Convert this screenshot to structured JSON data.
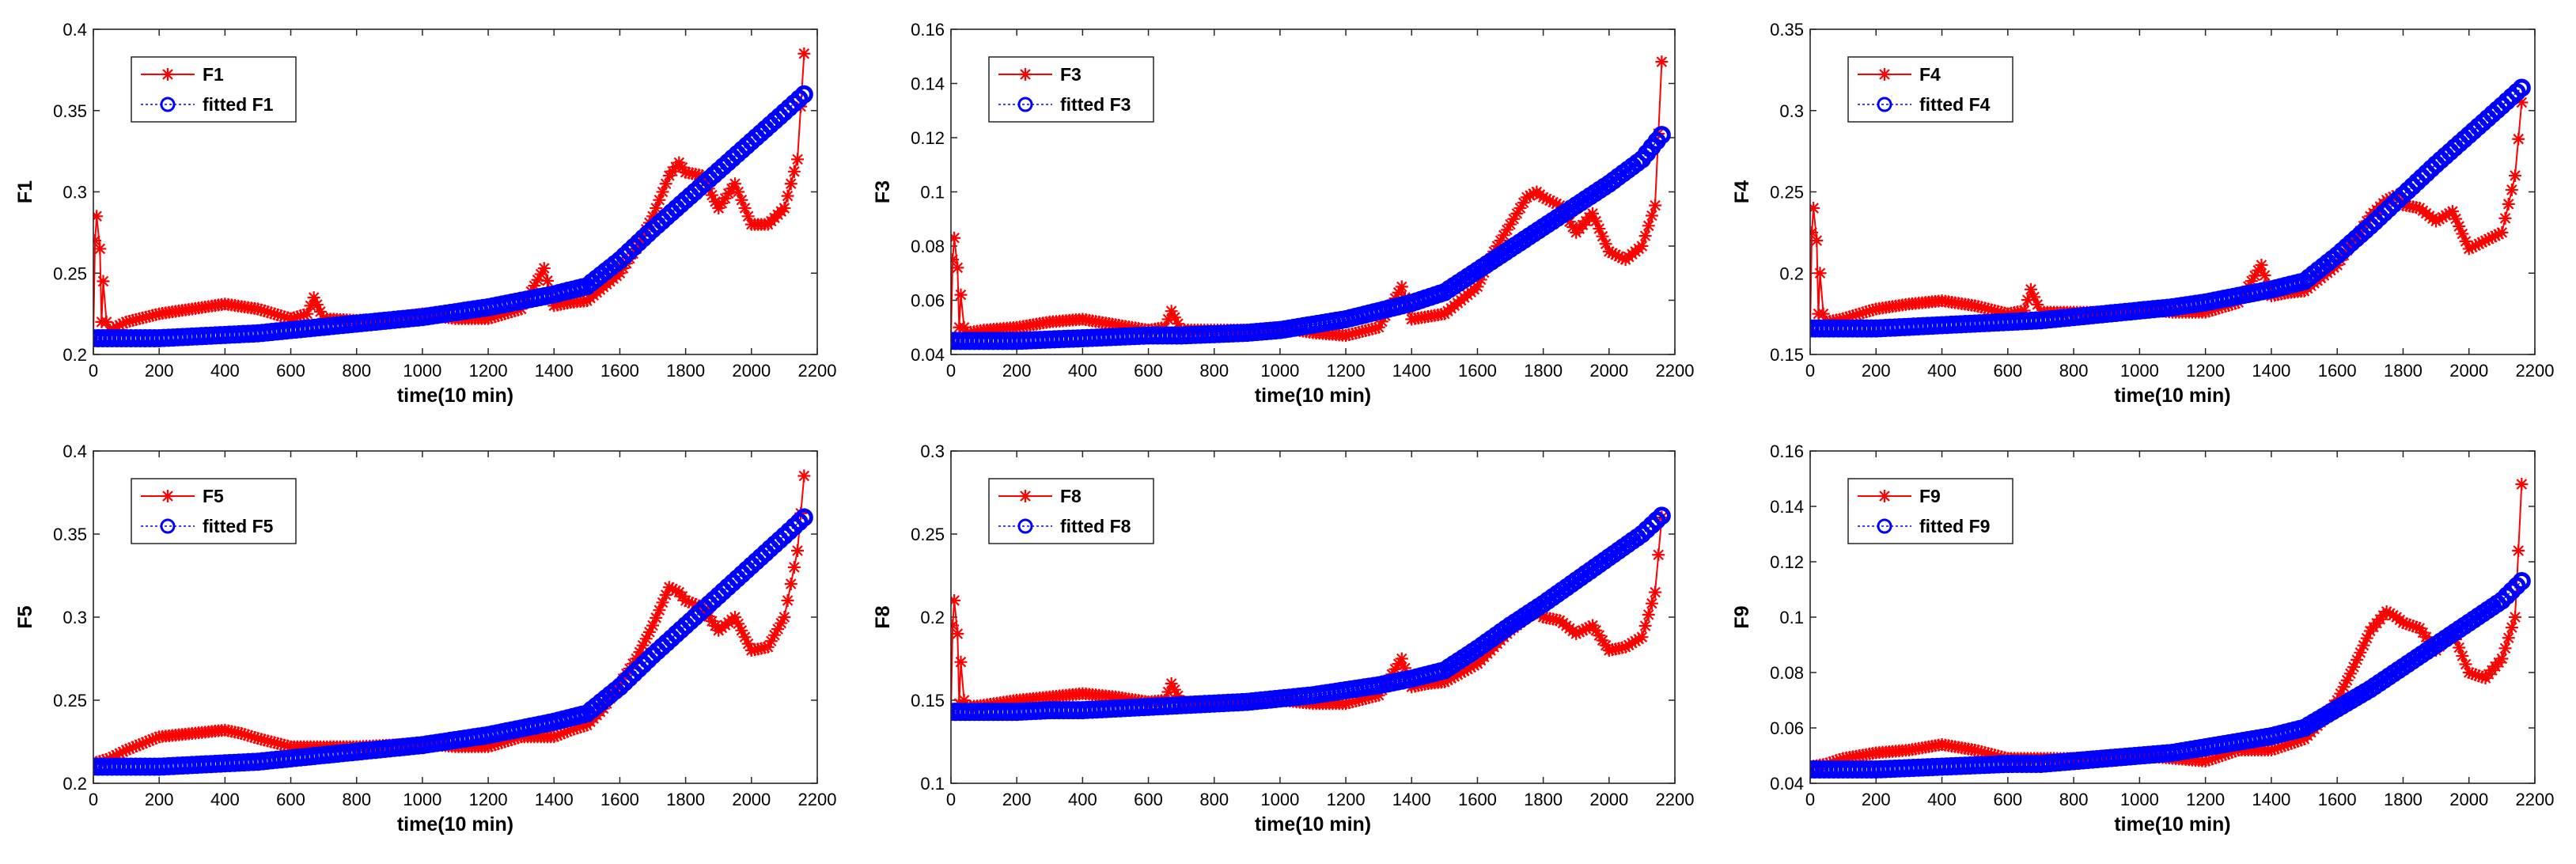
{
  "chart_data": [
    {
      "type": "line",
      "ylabel": "F1",
      "xlabel": "time(10 min)",
      "xlim": [
        0,
        2200
      ],
      "ylim": [
        0.2,
        0.4
      ],
      "xticks": [
        "0",
        "200",
        "400",
        "600",
        "800",
        "1000",
        "1200",
        "1400",
        "1600",
        "1800",
        "2000",
        "2200"
      ],
      "yticks": [
        "0.2",
        "0.25",
        "0.3",
        "0.35",
        "0.4"
      ],
      "legend_position": "top-left",
      "series": [
        {
          "name": "F1",
          "color": "#ff0000",
          "marker": "asterisk",
          "x": [
            0,
            5,
            10,
            20,
            25,
            30,
            40,
            50,
            100,
            200,
            300,
            400,
            500,
            600,
            650,
            670,
            700,
            800,
            900,
            1000,
            1100,
            1200,
            1300,
            1370,
            1400,
            1450,
            1500,
            1600,
            1650,
            1700,
            1750,
            1780,
            1800,
            1850,
            1900,
            1950,
            2000,
            2050,
            2100,
            2140,
            2160
          ],
          "y": [
            0.21,
            0.27,
            0.285,
            0.265,
            0.22,
            0.245,
            0.22,
            0.215,
            0.22,
            0.225,
            0.228,
            0.231,
            0.228,
            0.222,
            0.225,
            0.235,
            0.222,
            0.221,
            0.222,
            0.225,
            0.222,
            0.222,
            0.228,
            0.253,
            0.23,
            0.232,
            0.233,
            0.25,
            0.265,
            0.285,
            0.31,
            0.318,
            0.312,
            0.31,
            0.29,
            0.305,
            0.28,
            0.28,
            0.29,
            0.32,
            0.385
          ]
        },
        {
          "name": "fitted F1",
          "color": "#0000ff",
          "marker": "circle",
          "x": [
            0,
            100,
            200,
            300,
            400,
            500,
            600,
            700,
            800,
            900,
            1000,
            1100,
            1200,
            1300,
            1400,
            1500,
            1600,
            1700,
            1800,
            1900,
            2000,
            2100,
            2160
          ],
          "y": [
            0.21,
            0.21,
            0.21,
            0.211,
            0.212,
            0.213,
            0.215,
            0.217,
            0.219,
            0.221,
            0.223,
            0.226,
            0.229,
            0.233,
            0.237,
            0.242,
            0.258,
            0.277,
            0.295,
            0.313,
            0.331,
            0.349,
            0.36
          ]
        }
      ]
    },
    {
      "type": "line",
      "ylabel": "F3",
      "xlabel": "time(10 min)",
      "xlim": [
        0,
        2200
      ],
      "ylim": [
        0.04,
        0.16
      ],
      "xticks": [
        "0",
        "200",
        "400",
        "600",
        "800",
        "1000",
        "1200",
        "1400",
        "1600",
        "1800",
        "2000",
        "2200"
      ],
      "yticks": [
        "0.04",
        "0.06",
        "0.08",
        "0.1",
        "0.12",
        "0.14",
        "0.16"
      ],
      "legend_position": "top-left",
      "series": [
        {
          "name": "F3",
          "color": "#ff0000",
          "marker": "asterisk",
          "x": [
            0,
            5,
            10,
            20,
            25,
            30,
            40,
            50,
            100,
            200,
            300,
            400,
            500,
            600,
            650,
            670,
            700,
            800,
            900,
            1000,
            1100,
            1200,
            1300,
            1370,
            1400,
            1450,
            1500,
            1600,
            1650,
            1700,
            1750,
            1780,
            1800,
            1850,
            1900,
            1950,
            2000,
            2050,
            2100,
            2140,
            2160
          ],
          "y": [
            0.046,
            0.075,
            0.083,
            0.072,
            0.05,
            0.062,
            0.05,
            0.048,
            0.049,
            0.05,
            0.052,
            0.053,
            0.051,
            0.049,
            0.05,
            0.056,
            0.049,
            0.049,
            0.049,
            0.05,
            0.048,
            0.047,
            0.05,
            0.065,
            0.053,
            0.054,
            0.055,
            0.065,
            0.078,
            0.088,
            0.098,
            0.1,
            0.098,
            0.095,
            0.085,
            0.092,
            0.078,
            0.075,
            0.08,
            0.095,
            0.148
          ]
        },
        {
          "name": "fitted F3",
          "color": "#0000ff",
          "marker": "circle",
          "x": [
            0,
            100,
            200,
            300,
            400,
            500,
            600,
            700,
            800,
            900,
            1000,
            1100,
            1200,
            1300,
            1400,
            1500,
            1600,
            1700,
            1800,
            1900,
            2000,
            2100,
            2160
          ],
          "y": [
            0.045,
            0.045,
            0.045,
            0.0455,
            0.046,
            0.0465,
            0.047,
            0.047,
            0.0475,
            0.048,
            0.049,
            0.051,
            0.053,
            0.056,
            0.059,
            0.063,
            0.071,
            0.079,
            0.087,
            0.095,
            0.103,
            0.112,
            0.121
          ]
        }
      ]
    },
    {
      "type": "line",
      "ylabel": "F4",
      "xlabel": "time(10 min)",
      "xlim": [
        0,
        2200
      ],
      "ylim": [
        0.15,
        0.35
      ],
      "xticks": [
        "0",
        "200",
        "400",
        "600",
        "800",
        "1000",
        "1200",
        "1400",
        "1600",
        "1800",
        "2000",
        "2200"
      ],
      "yticks": [
        "0.15",
        "0.2",
        "0.25",
        "0.3",
        "0.35"
      ],
      "legend_position": "top-left",
      "series": [
        {
          "name": "F4",
          "color": "#ff0000",
          "marker": "asterisk",
          "x": [
            0,
            5,
            10,
            20,
            25,
            30,
            40,
            50,
            100,
            200,
            300,
            400,
            500,
            600,
            650,
            670,
            700,
            800,
            900,
            1000,
            1100,
            1200,
            1300,
            1370,
            1400,
            1450,
            1500,
            1600,
            1650,
            1700,
            1750,
            1780,
            1800,
            1850,
            1900,
            1950,
            2000,
            2050,
            2100,
            2140,
            2160
          ],
          "y": [
            0.165,
            0.225,
            0.24,
            0.22,
            0.175,
            0.2,
            0.175,
            0.17,
            0.172,
            0.178,
            0.181,
            0.183,
            0.18,
            0.175,
            0.177,
            0.19,
            0.176,
            0.176,
            0.176,
            0.178,
            0.176,
            0.176,
            0.182,
            0.205,
            0.186,
            0.188,
            0.189,
            0.205,
            0.22,
            0.235,
            0.245,
            0.248,
            0.242,
            0.24,
            0.232,
            0.238,
            0.215,
            0.22,
            0.225,
            0.26,
            0.305
          ]
        },
        {
          "name": "fitted F4",
          "color": "#0000ff",
          "marker": "circle",
          "x": [
            0,
            100,
            200,
            300,
            400,
            500,
            600,
            700,
            800,
            900,
            1000,
            1100,
            1200,
            1300,
            1400,
            1500,
            1600,
            1700,
            1800,
            1900,
            2000,
            2100,
            2160
          ],
          "y": [
            0.166,
            0.166,
            0.166,
            0.167,
            0.168,
            0.169,
            0.17,
            0.171,
            0.173,
            0.175,
            0.177,
            0.179,
            0.182,
            0.186,
            0.19,
            0.195,
            0.211,
            0.229,
            0.248,
            0.267,
            0.285,
            0.303,
            0.314
          ]
        }
      ]
    },
    {
      "type": "line",
      "ylabel": "F5",
      "xlabel": "time(10 min)",
      "xlim": [
        0,
        2200
      ],
      "ylim": [
        0.2,
        0.4
      ],
      "xticks": [
        "0",
        "200",
        "400",
        "600",
        "800",
        "1000",
        "1200",
        "1400",
        "1600",
        "1800",
        "2000",
        "2200"
      ],
      "yticks": [
        "0.2",
        "0.25",
        "0.3",
        "0.35",
        "0.4"
      ],
      "legend_position": "top-left",
      "series": [
        {
          "name": "F5",
          "color": "#ff0000",
          "marker": "asterisk",
          "x": [
            0,
            50,
            100,
            200,
            300,
            400,
            450,
            500,
            600,
            700,
            800,
            900,
            1000,
            1100,
            1200,
            1300,
            1400,
            1450,
            1500,
            1550,
            1600,
            1650,
            1700,
            1750,
            1780,
            1800,
            1850,
            1900,
            1950,
            2000,
            2050,
            2100,
            2140,
            2160
          ],
          "y": [
            0.212,
            0.215,
            0.22,
            0.228,
            0.23,
            0.232,
            0.23,
            0.227,
            0.222,
            0.222,
            0.222,
            0.223,
            0.224,
            0.222,
            0.222,
            0.228,
            0.228,
            0.232,
            0.235,
            0.245,
            0.26,
            0.275,
            0.295,
            0.318,
            0.315,
            0.31,
            0.306,
            0.292,
            0.3,
            0.28,
            0.282,
            0.3,
            0.34,
            0.385
          ]
        },
        {
          "name": "fitted F5",
          "color": "#0000ff",
          "marker": "circle",
          "x": [
            0,
            100,
            200,
            300,
            400,
            500,
            600,
            700,
            800,
            900,
            1000,
            1100,
            1200,
            1300,
            1400,
            1500,
            1600,
            1700,
            1800,
            1900,
            2000,
            2100,
            2160
          ],
          "y": [
            0.21,
            0.21,
            0.21,
            0.211,
            0.212,
            0.213,
            0.215,
            0.217,
            0.219,
            0.221,
            0.223,
            0.226,
            0.229,
            0.233,
            0.237,
            0.242,
            0.258,
            0.277,
            0.295,
            0.313,
            0.331,
            0.349,
            0.36
          ]
        }
      ]
    },
    {
      "type": "line",
      "ylabel": "F8",
      "xlabel": "time(10 min)",
      "xlim": [
        0,
        2200
      ],
      "ylim": [
        0.1,
        0.3
      ],
      "xticks": [
        "0",
        "200",
        "400",
        "600",
        "800",
        "1000",
        "1200",
        "1400",
        "1600",
        "1800",
        "2000",
        "2200"
      ],
      "yticks": [
        "0.1",
        "0.15",
        "0.2",
        "0.25",
        "0.3"
      ],
      "legend_position": "top-left",
      "series": [
        {
          "name": "F8",
          "color": "#ff0000",
          "marker": "asterisk",
          "x": [
            0,
            5,
            10,
            20,
            25,
            30,
            40,
            50,
            100,
            200,
            300,
            400,
            500,
            600,
            650,
            670,
            700,
            800,
            900,
            1000,
            1100,
            1200,
            1300,
            1370,
            1400,
            1450,
            1500,
            1600,
            1650,
            1700,
            1750,
            1780,
            1800,
            1850,
            1900,
            1950,
            2000,
            2050,
            2100,
            2140,
            2160
          ],
          "y": [
            0.143,
            0.195,
            0.21,
            0.19,
            0.148,
            0.173,
            0.15,
            0.146,
            0.147,
            0.15,
            0.152,
            0.154,
            0.152,
            0.149,
            0.15,
            0.16,
            0.149,
            0.148,
            0.148,
            0.15,
            0.148,
            0.148,
            0.153,
            0.175,
            0.158,
            0.16,
            0.161,
            0.172,
            0.182,
            0.192,
            0.2,
            0.203,
            0.2,
            0.198,
            0.19,
            0.195,
            0.18,
            0.182,
            0.188,
            0.215,
            0.26
          ]
        },
        {
          "name": "fitted F8",
          "color": "#0000ff",
          "marker": "circle",
          "x": [
            0,
            100,
            200,
            300,
            400,
            500,
            600,
            700,
            800,
            900,
            1000,
            1100,
            1200,
            1300,
            1400,
            1500,
            1600,
            1700,
            1800,
            1900,
            2000,
            2100,
            2160
          ],
          "y": [
            0.143,
            0.143,
            0.143,
            0.144,
            0.144,
            0.145,
            0.146,
            0.147,
            0.148,
            0.149,
            0.151,
            0.153,
            0.156,
            0.159,
            0.163,
            0.168,
            0.181,
            0.195,
            0.208,
            0.222,
            0.236,
            0.25,
            0.261
          ]
        }
      ]
    },
    {
      "type": "line",
      "ylabel": "F9",
      "xlabel": "time(10 min)",
      "xlim": [
        0,
        2200
      ],
      "ylim": [
        0.04,
        0.16
      ],
      "xticks": [
        "0",
        "200",
        "400",
        "600",
        "800",
        "1000",
        "1200",
        "1400",
        "1600",
        "1800",
        "2000",
        "2200"
      ],
      "yticks": [
        "0.04",
        "0.06",
        "0.08",
        "0.1",
        "0.12",
        "0.14",
        "0.16"
      ],
      "legend_position": "top-left",
      "series": [
        {
          "name": "F9",
          "color": "#ff0000",
          "marker": "asterisk",
          "x": [
            0,
            50,
            100,
            200,
            300,
            400,
            450,
            500,
            600,
            700,
            800,
            900,
            1000,
            1100,
            1200,
            1300,
            1400,
            1450,
            1500,
            1550,
            1600,
            1650,
            1700,
            1750,
            1780,
            1800,
            1850,
            1900,
            1950,
            2000,
            2050,
            2100,
            2140,
            2160
          ],
          "y": [
            0.046,
            0.047,
            0.049,
            0.051,
            0.052,
            0.054,
            0.053,
            0.052,
            0.049,
            0.049,
            0.049,
            0.05,
            0.05,
            0.049,
            0.048,
            0.052,
            0.052,
            0.054,
            0.056,
            0.062,
            0.07,
            0.082,
            0.095,
            0.102,
            0.1,
            0.098,
            0.096,
            0.088,
            0.095,
            0.08,
            0.078,
            0.085,
            0.1,
            0.148
          ]
        },
        {
          "name": "fitted F9",
          "color": "#0000ff",
          "marker": "circle",
          "x": [
            0,
            100,
            200,
            300,
            400,
            500,
            600,
            700,
            800,
            900,
            1000,
            1100,
            1200,
            1300,
            1400,
            1500,
            1600,
            1700,
            1800,
            1900,
            2000,
            2100,
            2160
          ],
          "y": [
            0.045,
            0.045,
            0.045,
            0.0455,
            0.046,
            0.0465,
            0.047,
            0.047,
            0.048,
            0.049,
            0.05,
            0.051,
            0.053,
            0.055,
            0.057,
            0.06,
            0.067,
            0.074,
            0.082,
            0.09,
            0.098,
            0.106,
            0.113
          ]
        }
      ]
    }
  ]
}
